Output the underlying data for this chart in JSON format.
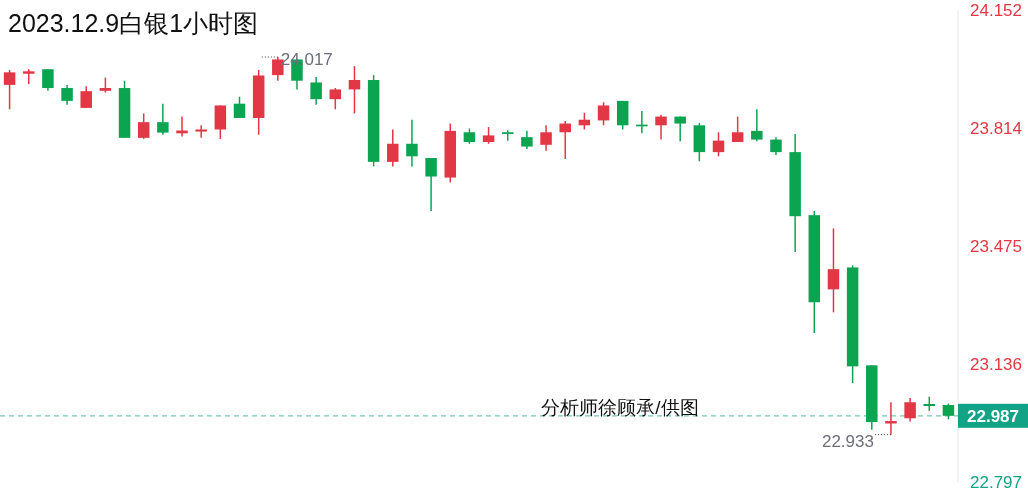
{
  "chart_data": {
    "type": "candlestick",
    "title": "2023.12.9白银1小时图",
    "categories": [
      null,
      null,
      null,
      null,
      null,
      null,
      null,
      null,
      null,
      null,
      null,
      null,
      null,
      null,
      null,
      null,
      null,
      null,
      null,
      null,
      null,
      null,
      null,
      null,
      null,
      null,
      null,
      null,
      null,
      null,
      null,
      null,
      null,
      null,
      null,
      null,
      null,
      null,
      null,
      null,
      null,
      null,
      null,
      null,
      null,
      null,
      null,
      null,
      null,
      null
    ],
    "ohlc": [
      [
        23.937,
        23.98,
        23.867,
        23.973
      ],
      [
        23.969,
        23.982,
        23.939,
        23.976
      ],
      [
        23.982,
        23.982,
        23.92,
        23.928
      ],
      [
        23.928,
        23.937,
        23.88,
        23.891
      ],
      [
        23.871,
        23.933,
        23.871,
        23.919
      ],
      [
        23.92,
        23.958,
        23.915,
        23.928
      ],
      [
        23.928,
        23.949,
        23.785,
        23.785
      ],
      [
        23.785,
        23.855,
        23.782,
        23.83
      ],
      [
        23.83,
        23.883,
        23.794,
        23.8
      ],
      [
        23.798,
        23.846,
        23.789,
        23.806
      ],
      [
        23.803,
        23.821,
        23.785,
        23.809
      ],
      [
        23.809,
        23.878,
        23.782,
        23.878
      ],
      [
        23.883,
        23.903,
        23.842,
        23.842
      ],
      [
        23.842,
        23.98,
        23.794,
        23.964
      ],
      [
        23.965,
        24.017,
        23.949,
        24.01
      ],
      [
        24.01,
        24.012,
        23.924,
        23.949
      ],
      [
        23.944,
        23.96,
        23.88,
        23.896
      ],
      [
        23.896,
        23.928,
        23.867,
        23.924
      ],
      [
        23.924,
        23.991,
        23.855,
        23.951
      ],
      [
        23.951,
        23.965,
        23.703,
        23.716
      ],
      [
        23.716,
        23.809,
        23.703,
        23.768
      ],
      [
        23.768,
        23.837,
        23.703,
        23.732
      ],
      [
        23.727,
        23.727,
        23.575,
        23.674
      ],
      [
        23.671,
        23.826,
        23.657,
        23.805
      ],
      [
        23.801,
        23.812,
        23.768,
        23.773
      ],
      [
        23.773,
        23.816,
        23.768,
        23.792
      ],
      [
        23.801,
        23.807,
        23.777,
        23.796
      ],
      [
        23.787,
        23.805,
        23.753,
        23.76
      ],
      [
        23.765,
        23.821,
        23.748,
        23.801
      ],
      [
        23.801,
        23.833,
        23.724,
        23.826
      ],
      [
        23.821,
        23.857,
        23.809,
        23.837
      ],
      [
        23.835,
        23.887,
        23.821,
        23.878
      ],
      [
        23.891,
        23.891,
        23.809,
        23.821
      ],
      [
        23.823,
        23.862,
        23.798,
        23.818
      ],
      [
        23.821,
        23.851,
        23.78,
        23.846
      ],
      [
        23.846,
        23.846,
        23.775,
        23.826
      ],
      [
        23.821,
        23.828,
        23.718,
        23.744
      ],
      [
        23.744,
        23.801,
        23.732,
        23.777
      ],
      [
        23.773,
        23.846,
        23.773,
        23.801
      ],
      [
        23.805,
        23.867,
        23.775,
        23.78
      ],
      [
        23.78,
        23.787,
        23.736,
        23.744
      ],
      [
        23.744,
        23.796,
        23.457,
        23.56
      ],
      [
        23.563,
        23.575,
        23.225,
        23.313
      ],
      [
        23.35,
        23.525,
        23.284,
        23.408
      ],
      [
        23.413,
        23.419,
        23.081,
        23.129
      ],
      [
        23.132,
        23.132,
        22.947,
        22.969
      ],
      [
        22.965,
        23.026,
        22.933,
        22.972
      ],
      [
        22.98,
        23.038,
        22.971,
        23.026
      ],
      [
        23.021,
        23.042,
        23.001,
        23.015
      ],
      [
        23.018,
        23.022,
        22.977,
        22.987
      ]
    ],
    "colors": [
      "#e23744",
      "#e23744",
      "#0ba552",
      "#0ba552",
      "#e23744",
      "#e23744",
      "#0ba552",
      "#e23744",
      "#0ba552",
      "#e23744",
      "#e23744",
      "#e23744",
      "#0ba552",
      "#e23744",
      "#e23744",
      "#0ba552",
      "#0ba552",
      "#e23744",
      "#e23744",
      "#0ba552",
      "#e23744",
      "#0ba552",
      "#0ba552",
      "#e23744",
      "#0ba552",
      "#e23744",
      "#0ba552",
      "#0ba552",
      "#e23744",
      "#e23744",
      "#e23744",
      "#e23744",
      "#0ba552",
      "#0ba552",
      "#e23744",
      "#0ba552",
      "#0ba552",
      "#e23744",
      "#e23744",
      "#0ba552",
      "#0ba552",
      "#0ba552",
      "#0ba552",
      "#e23744",
      "#0ba552",
      "#0ba552",
      "#e23744",
      "#e23744",
      "#0ba552",
      "#0ba552"
    ],
    "ylim": [
      22.797,
      24.152
    ],
    "yticks": [
      22.797,
      23.136,
      23.475,
      23.814,
      24.152
    ],
    "ref_lines": [
      {
        "axis": "y",
        "value": 22.987,
        "label": "22.987",
        "color": "#12a386",
        "line_style": "dashed"
      }
    ],
    "annotations": [
      "24.017",
      "22.933",
      "分析师徐顾承/供图"
    ]
  }
}
